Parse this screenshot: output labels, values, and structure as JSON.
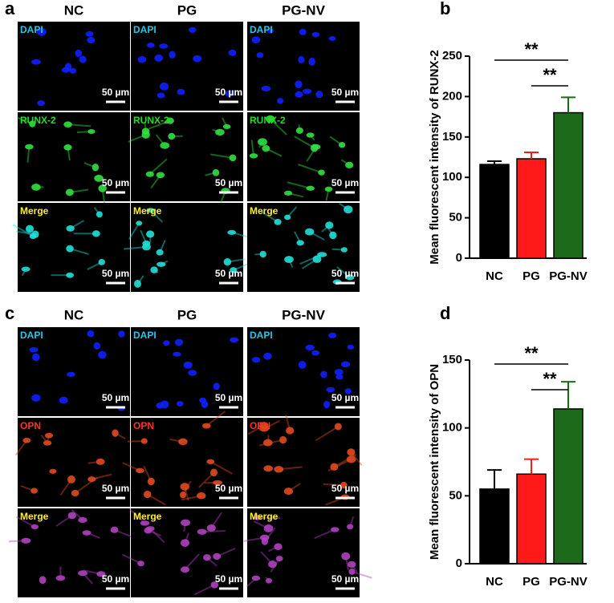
{
  "image_panels": [
    {
      "letter": "a",
      "columns": [
        "NC",
        "PG",
        "PG-NV"
      ],
      "rows": [
        "DAPI",
        "RUNX-2",
        "Merge"
      ],
      "scale_bar": "50 µm"
    },
    {
      "letter": "c",
      "columns": [
        "NC",
        "PG",
        "PG-NV"
      ],
      "rows": [
        "DAPI",
        "OPN",
        "Merge"
      ],
      "scale_bar": "50 µm"
    }
  ],
  "chart_data": [
    {
      "type": "bar",
      "letter": "b",
      "y_label": "Mean fluorescent intensity of RUNX-2",
      "categories": [
        "NC",
        "PG",
        "PG-NV"
      ],
      "values": [
        116,
        123,
        180
      ],
      "errors": [
        4,
        8,
        19
      ],
      "colors": [
        "#000000",
        "#ff1a1a",
        "#1b6b1b"
      ],
      "ylim": [
        0,
        250
      ],
      "yticks": [
        0,
        50,
        100,
        150,
        200,
        250
      ],
      "annotations": [
        {
          "text": "**",
          "pair": [
            0,
            2
          ]
        },
        {
          "text": "**",
          "pair": [
            1,
            2
          ]
        }
      ]
    },
    {
      "type": "bar",
      "letter": "d",
      "y_label": "Mean fluorescent intensity of OPN",
      "categories": [
        "NC",
        "PG",
        "PG-NV"
      ],
      "values": [
        55,
        66,
        114
      ],
      "errors": [
        14,
        11,
        20
      ],
      "colors": [
        "#000000",
        "#ff1a1a",
        "#1b6b1b"
      ],
      "ylim": [
        0,
        150
      ],
      "yticks": [
        0,
        50,
        100,
        150
      ],
      "annotations": [
        {
          "text": "**",
          "pair": [
            0,
            2
          ]
        },
        {
          "text": "**",
          "pair": [
            1,
            2
          ]
        }
      ]
    }
  ]
}
